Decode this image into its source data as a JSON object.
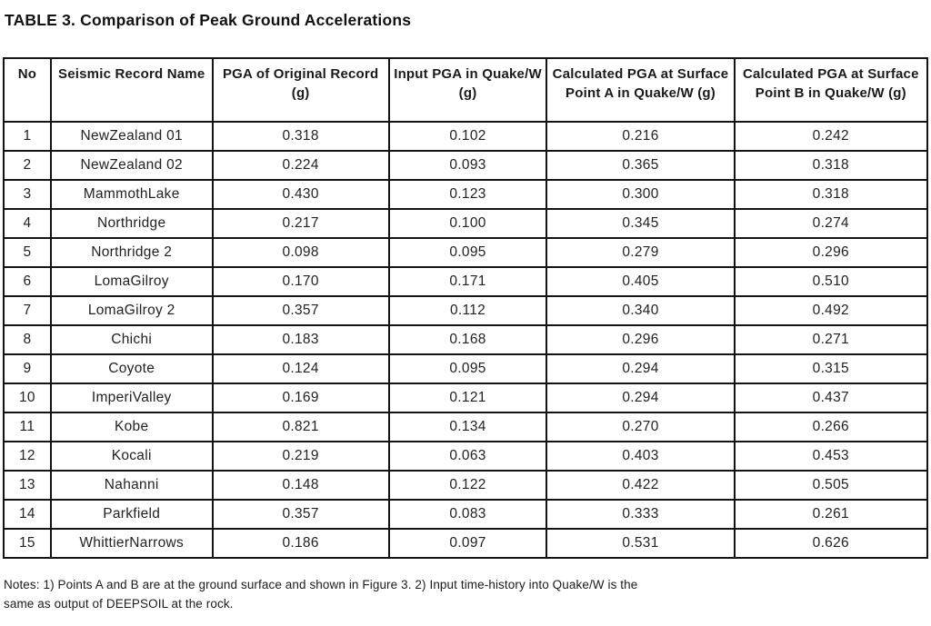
{
  "title": "TABLE 3. Comparison of Peak Ground Accelerations",
  "table": {
    "column_keys": [
      "no",
      "seismic-record-name",
      "pga-original-record",
      "input-pga-quakew",
      "calculated-pga-point-a",
      "calculated-pga-point-b"
    ],
    "columns": [
      "No",
      "Seismic Record Name",
      "PGA of Original Record (g)",
      "Input PGA in Quake/W (g)",
      "Calculated PGA at Surface Point A in Quake/W (g)",
      "Calculated PGA at Surface Point B in Quake/W (g)"
    ],
    "rows": [
      [
        "1",
        "NewZealand 01",
        "0.318",
        "0.102",
        "0.216",
        "0.242"
      ],
      [
        "2",
        "NewZealand 02",
        "0.224",
        "0.093",
        "0.365",
        "0.318"
      ],
      [
        "3",
        "MammothLake",
        "0.430",
        "0.123",
        "0.300",
        "0.318"
      ],
      [
        "4",
        "Northridge",
        "0.217",
        "0.100",
        "0.345",
        "0.274"
      ],
      [
        "5",
        "Northridge 2",
        "0.098",
        "0.095",
        "0.279",
        "0.296"
      ],
      [
        "6",
        "LomaGilroy",
        "0.170",
        "0.171",
        "0.405",
        "0.510"
      ],
      [
        "7",
        "LomaGilroy 2",
        "0.357",
        "0.112",
        "0.340",
        "0.492"
      ],
      [
        "8",
        "Chichi",
        "0.183",
        "0.168",
        "0.296",
        "0.271"
      ],
      [
        "9",
        "Coyote",
        "0.124",
        "0.095",
        "0.294",
        "0.315"
      ],
      [
        "10",
        "ImperiValley",
        "0.169",
        "0.121",
        "0.294",
        "0.437"
      ],
      [
        "11",
        "Kobe",
        "0.821",
        "0.134",
        "0.270",
        "0.266"
      ],
      [
        "12",
        "Kocali",
        "0.219",
        "0.063",
        "0.403",
        "0.453"
      ],
      [
        "13",
        "Nahanni",
        "0.148",
        "0.122",
        "0.422",
        "0.505"
      ],
      [
        "14",
        "Parkfield",
        "0.357",
        "0.083",
        "0.333",
        "0.261"
      ],
      [
        "15",
        "WhittierNarrows",
        "0.186",
        "0.097",
        "0.531",
        "0.626"
      ]
    ]
  },
  "notes": "Notes: 1) Points A and B are at the ground surface and shown in Figure 3. 2) Input time-history into Quake/W is the same as output of DEEPSOIL at the rock."
}
